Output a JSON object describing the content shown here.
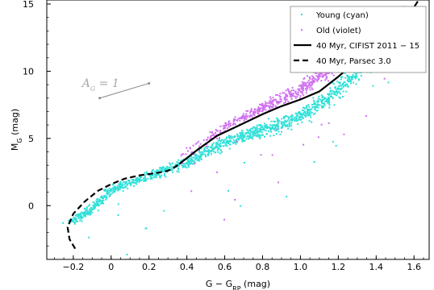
{
  "chart_data": {
    "type": "scatter",
    "xlabel": "G − G_RP (mag)",
    "ylabel": "M_G (mag)",
    "xlim": [
      -0.34,
      1.68
    ],
    "ylim": [
      15.3,
      -4.0
    ],
    "y_inverted": true,
    "grid": false,
    "legend_position": "top-right",
    "x_ticks": [
      -0.2,
      0,
      0.2,
      0.4,
      0.6,
      0.8,
      1.0,
      1.2,
      1.4,
      1.6
    ],
    "x_tick_labels": [
      "−0.2",
      "0",
      "0.2",
      "0.4",
      "0.6",
      "0.8",
      "1.0",
      "1.2",
      "1.4",
      "1.6"
    ],
    "y_ticks": [
      0,
      5,
      10,
      15
    ],
    "y_tick_labels": [
      "0",
      "5",
      "10",
      "15"
    ],
    "series": [
      {
        "name": "Young (cyan)",
        "kind": "scatter",
        "color": "#30e0d8",
        "ridge": [
          [
            -0.22,
            -1.4
          ],
          [
            -0.12,
            -0.4
          ],
          [
            0.0,
            1.2
          ],
          [
            0.2,
            2.2
          ],
          [
            0.4,
            3.2
          ],
          [
            0.6,
            4.7
          ],
          [
            0.8,
            5.6
          ],
          [
            1.0,
            6.6
          ],
          [
            1.2,
            8.6
          ],
          [
            1.4,
            11.3
          ],
          [
            1.48,
            13.2
          ]
        ]
      },
      {
        "name": "Old (violet)",
        "kind": "scatter",
        "color": "#d070f0",
        "ridge": [
          [
            0.38,
            3.6
          ],
          [
            0.6,
            5.9
          ],
          [
            0.8,
            7.3
          ],
          [
            1.0,
            8.6
          ],
          [
            1.2,
            10.7
          ],
          [
            1.4,
            12.9
          ],
          [
            1.55,
            14.1
          ]
        ]
      },
      {
        "name": "40 Myr, CIFIST 2011 − 15",
        "kind": "line",
        "style": "solid",
        "color": "#000000",
        "points": [
          [
            0.36,
            3.1
          ],
          [
            0.46,
            4.2
          ],
          [
            0.56,
            5.2
          ],
          [
            0.68,
            6.0
          ],
          [
            0.8,
            6.8
          ],
          [
            0.9,
            7.4
          ],
          [
            1.0,
            7.9
          ],
          [
            1.1,
            8.5
          ],
          [
            1.2,
            9.6
          ],
          [
            1.3,
            10.8
          ],
          [
            1.4,
            12.0
          ],
          [
            1.5,
            13.2
          ],
          [
            1.57,
            14.1
          ],
          [
            1.62,
            15.2
          ]
        ]
      },
      {
        "name": "40 Myr, Parsec 3.0",
        "kind": "line",
        "style": "dashed",
        "color": "#000000",
        "points": [
          [
            -0.19,
            -3.2
          ],
          [
            -0.22,
            -2.5
          ],
          [
            -0.23,
            -1.6
          ],
          [
            -0.2,
            -0.6
          ],
          [
            -0.14,
            0.3
          ],
          [
            -0.07,
            1.1
          ],
          [
            0.0,
            1.6
          ],
          [
            0.07,
            2.0
          ],
          [
            0.15,
            2.25
          ],
          [
            0.25,
            2.45
          ],
          [
            0.3,
            2.6
          ],
          [
            0.33,
            2.8
          ],
          [
            0.36,
            3.1
          ]
        ]
      }
    ],
    "annotation": {
      "label": "A_G = 1",
      "vector_from": [
        -0.06,
        8.0
      ],
      "vector_to": [
        0.2,
        9.1
      ]
    }
  }
}
